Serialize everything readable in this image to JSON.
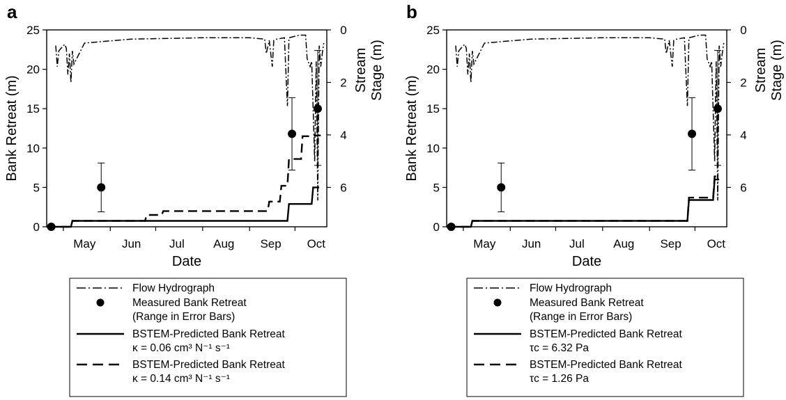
{
  "chart_data": [
    {
      "panel": "a",
      "type": "line",
      "xlabel": "Date",
      "ylabel": "Bank Retreat (m)",
      "y2label": [
        "Stream",
        "Stage (m)"
      ],
      "ylim": [
        0,
        25
      ],
      "y2lim": [
        0,
        7.5
      ],
      "y2_inverted": true,
      "xlim": [
        "Apr 20",
        "Oct 22"
      ],
      "x_tick_labels": [
        "May",
        "Jun",
        "Jul",
        "Aug",
        "Sep",
        "Oct"
      ],
      "y_ticks": [
        0,
        5,
        10,
        15,
        20,
        25
      ],
      "y2_ticks": [
        0,
        2,
        4,
        6
      ],
      "series": [
        {
          "name": "BSTEM-Predicted Bank Retreat κ = 0.06 cm3 N-1 s-1",
          "style": "solid",
          "x": [
            "Apr 20",
            "May 6",
            "May 7",
            "Sep 26",
            "Sep 27",
            "Oct 12",
            "Oct 13",
            "Oct 17"
          ],
          "y": [
            0,
            0,
            0.75,
            0.75,
            2.9,
            2.9,
            5.0,
            5.0
          ]
        },
        {
          "name": "BSTEM-Predicted Bank Retreat κ = 0.14 cm3 N-1 s-1",
          "style": "dash",
          "x": [
            "Apr 20",
            "May 6",
            "May 7",
            "Jun 24",
            "Jun 25",
            "Jul 5",
            "Jul 6",
            "Sep 13",
            "Sep 14",
            "Sep 21",
            "Sep 22",
            "Sep 26",
            "Sep 27",
            "Oct 5",
            "Oct 6",
            "Oct 13",
            "Oct 14",
            "Oct 18"
          ],
          "y": [
            0,
            0,
            0.75,
            0.75,
            1.5,
            1.5,
            2.0,
            2.0,
            3.2,
            3.2,
            5.2,
            5.2,
            8.6,
            8.6,
            11.5,
            11.5,
            11.6,
            11.6
          ]
        },
        {
          "name": "Measured Bank Retreat",
          "type": "scatter",
          "x": [
            "Apr 23",
            "May 26",
            "Sep 29",
            "Oct 16"
          ],
          "y": [
            0,
            5.0,
            11.8,
            15.0
          ],
          "err_low": [
            0,
            1.9,
            7.2,
            7.8
          ],
          "err_high": [
            0,
            8.1,
            16.4,
            22.4
          ]
        },
        {
          "name": "Flow Hydrograph",
          "style": "dash-dot",
          "axis": "y2",
          "x": [
            "Apr 26",
            "Apr 27",
            "Apr 28",
            "May 1",
            "May 2",
            "May 3",
            "May 4",
            "May 5",
            "May 6",
            "May 7",
            "May 8",
            "May 15",
            "Jun 15",
            "Aug 1",
            "Sep 1",
            "Sep 11",
            "Sep 12",
            "Sep 14",
            "Sep 16",
            "Sep 17",
            "Sep 19",
            "Sep 24",
            "Sep 25",
            "Sep 26",
            "Sep 27",
            "Oct 4",
            "Oct 8",
            "Oct 9",
            "Oct 11",
            "Oct 12",
            "Oct 13",
            "Oct 14",
            "Oct 15",
            "Oct 16",
            "Oct 17",
            "Oct 18",
            "Oct 19",
            "Oct 20"
          ],
          "y": [
            0.6,
            1.4,
            0.8,
            0.6,
            0.55,
            0.7,
            1.7,
            0.9,
            2.0,
            0.8,
            1.3,
            0.5,
            0.35,
            0.3,
            0.3,
            0.35,
            0.9,
            0.4,
            1.4,
            0.4,
            0.35,
            0.3,
            1.6,
            2.9,
            0.3,
            0.2,
            0.2,
            1.1,
            1.4,
            1.2,
            3.0,
            5.0,
            1.2,
            6.5,
            0.6,
            1.4,
            0.9,
            0.5
          ]
        }
      ],
      "legend": [
        {
          "style": "dash-dot",
          "lines": [
            "Flow Hydrograph"
          ]
        },
        {
          "style": "marker",
          "lines": [
            "Measured Bank Retreat",
            "(Range in Error Bars)"
          ]
        },
        {
          "style": "solid",
          "lines": [
            "BSTEM-Predicted Bank Retreat",
            "κ = 0.06 cm³ N⁻¹ s⁻¹"
          ]
        },
        {
          "style": "dash",
          "lines": [
            "BSTEM-Predicted Bank Retreat",
            "κ = 0.14 cm³ N⁻¹ s⁻¹"
          ]
        }
      ]
    },
    {
      "panel": "b",
      "type": "line",
      "xlabel": "Date",
      "ylabel": "Bank Retreat (m)",
      "y2label": [
        "Stream",
        "Stage (m)"
      ],
      "ylim": [
        0,
        25
      ],
      "y2lim": [
        0,
        7.5
      ],
      "y2_inverted": true,
      "xlim": [
        "Apr 20",
        "Oct 22"
      ],
      "x_tick_labels": [
        "May",
        "Jun",
        "Jul",
        "Aug",
        "Sep",
        "Oct"
      ],
      "y_ticks": [
        0,
        5,
        10,
        15,
        20,
        25
      ],
      "y2_ticks": [
        0,
        2,
        4,
        6
      ],
      "series": [
        {
          "name": "BSTEM-Predicted Bank Retreat τc = 6.32 Pa",
          "style": "solid",
          "x": [
            "Apr 20",
            "May 6",
            "May 7",
            "Sep 26",
            "Sep 27",
            "Oct 13",
            "Oct 14",
            "Oct 17"
          ],
          "y": [
            0,
            0,
            0.75,
            0.75,
            3.4,
            3.4,
            6.0,
            6.0
          ]
        },
        {
          "name": "BSTEM-Predicted Bank Retreat τc = 1.26 Pa",
          "style": "dash",
          "x": [
            "Apr 20",
            "May 6",
            "May 7",
            "Sep 26",
            "Sep 27",
            "Oct 13",
            "Oct 14",
            "Oct 17"
          ],
          "y": [
            0,
            0,
            0.75,
            0.75,
            3.7,
            3.7,
            6.4,
            6.4
          ]
        },
        {
          "name": "Measured Bank Retreat",
          "type": "scatter",
          "x": [
            "Apr 23",
            "May 26",
            "Sep 29",
            "Oct 16"
          ],
          "y": [
            0,
            5.0,
            11.8,
            15.0
          ],
          "err_low": [
            0,
            1.9,
            7.2,
            7.8
          ],
          "err_high": [
            0,
            8.1,
            16.4,
            22.4
          ]
        },
        {
          "name": "Flow Hydrograph",
          "style": "dash-dot",
          "axis": "y2",
          "x": [
            "Apr 26",
            "Apr 27",
            "Apr 28",
            "May 1",
            "May 2",
            "May 3",
            "May 4",
            "May 5",
            "May 6",
            "May 7",
            "May 8",
            "May 15",
            "Jun 15",
            "Aug 1",
            "Sep 1",
            "Sep 11",
            "Sep 12",
            "Sep 14",
            "Sep 16",
            "Sep 17",
            "Sep 19",
            "Sep 24",
            "Sep 25",
            "Sep 26",
            "Sep 27",
            "Oct 4",
            "Oct 8",
            "Oct 9",
            "Oct 11",
            "Oct 12",
            "Oct 13",
            "Oct 14",
            "Oct 15",
            "Oct 16",
            "Oct 17",
            "Oct 18",
            "Oct 19",
            "Oct 20"
          ],
          "y": [
            0.6,
            1.4,
            0.8,
            0.6,
            0.55,
            0.7,
            1.7,
            0.9,
            2.0,
            0.8,
            1.3,
            0.5,
            0.35,
            0.3,
            0.3,
            0.35,
            0.9,
            0.4,
            1.4,
            0.4,
            0.35,
            0.3,
            1.6,
            2.9,
            0.3,
            0.2,
            0.2,
            1.1,
            1.4,
            1.2,
            3.0,
            5.0,
            1.2,
            6.5,
            0.6,
            1.4,
            0.9,
            0.5
          ]
        }
      ],
      "legend": [
        {
          "style": "dash-dot",
          "lines": [
            "Flow Hydrograph"
          ]
        },
        {
          "style": "marker",
          "lines": [
            "Measured Bank Retreat",
            "(Range in Error Bars)"
          ]
        },
        {
          "style": "solid",
          "lines": [
            "BSTEM-Predicted Bank Retreat",
            "τc = 6.32 Pa"
          ]
        },
        {
          "style": "dash",
          "lines": [
            "BSTEM-Predicted Bank Retreat",
            "τc = 1.26 Pa"
          ]
        }
      ]
    }
  ]
}
